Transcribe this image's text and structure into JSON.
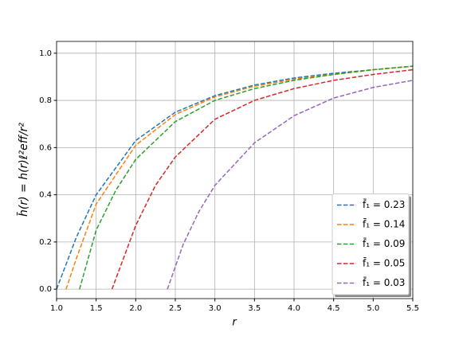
{
  "chart_data": {
    "type": "line",
    "xlabel": "r",
    "ylabel": "h̄(r) = h(r)ℓ²eff/r²",
    "xlim": [
      1.0,
      5.5
    ],
    "ylim": [
      -0.04,
      1.05
    ],
    "xticks": [
      {
        "value": 1.0,
        "label": "1.0"
      },
      {
        "value": 1.5,
        "label": "1.5"
      },
      {
        "value": 2.0,
        "label": "2.0"
      },
      {
        "value": 2.5,
        "label": "2.5"
      },
      {
        "value": 3.0,
        "label": "3.0"
      },
      {
        "value": 3.5,
        "label": "3.5"
      },
      {
        "value": 4.0,
        "label": "4.0"
      },
      {
        "value": 4.5,
        "label": "4.5"
      },
      {
        "value": 5.0,
        "label": "5.0"
      },
      {
        "value": 5.5,
        "label": "5.5"
      }
    ],
    "yticks": [
      {
        "value": 0,
        "label": "0.0"
      },
      0.2,
      0.4,
      0.6,
      0.8,
      {
        "value": 1,
        "label": "1.0"
      }
    ],
    "grid": true,
    "legend": "lower right",
    "series": [
      {
        "name": "f̄₁ = 0.23",
        "color": "#1f77b4",
        "x": [
          1.0,
          1.25,
          1.5,
          2.0,
          2.5,
          3.0,
          3.5,
          4.0,
          4.5,
          5.0,
          5.5
        ],
        "values": [
          0,
          0.22,
          0.4,
          0.63,
          0.75,
          0.82,
          0.865,
          0.895,
          0.915,
          0.93,
          0.945
        ]
      },
      {
        "name": "f̄₁ = 0.14",
        "color": "#ff7f0e",
        "x": [
          1.12,
          1.25,
          1.5,
          2.0,
          2.5,
          3.0,
          3.5,
          4.0,
          4.5,
          5.0,
          5.5
        ],
        "values": [
          0,
          0.13,
          0.36,
          0.61,
          0.74,
          0.815,
          0.86,
          0.89,
          0.91,
          0.93,
          0.945
        ]
      },
      {
        "name": "f̄₁ = 0.09",
        "color": "#2ca02c",
        "x": [
          1.29,
          1.5,
          1.75,
          2.0,
          2.5,
          3.0,
          3.5,
          4.0,
          4.5,
          5.0,
          5.5
        ],
        "values": [
          0,
          0.25,
          0.42,
          0.55,
          0.71,
          0.8,
          0.85,
          0.885,
          0.91,
          0.93,
          0.945
        ]
      },
      {
        "name": "f̄₁ = 0.05",
        "color": "#d62728",
        "x": [
          1.7,
          2.0,
          2.25,
          2.5,
          3.0,
          3.5,
          4.0,
          4.5,
          5.0,
          5.5
        ],
        "values": [
          0,
          0.27,
          0.44,
          0.56,
          0.72,
          0.8,
          0.85,
          0.885,
          0.91,
          0.93
        ]
      },
      {
        "name": "f̄₁ = 0.03",
        "color": "#9467bd",
        "x": [
          2.4,
          2.6,
          2.8,
          3.0,
          3.5,
          4.0,
          4.5,
          5.0,
          5.5
        ],
        "values": [
          0,
          0.19,
          0.33,
          0.44,
          0.62,
          0.735,
          0.81,
          0.855,
          0.885
        ]
      }
    ]
  }
}
